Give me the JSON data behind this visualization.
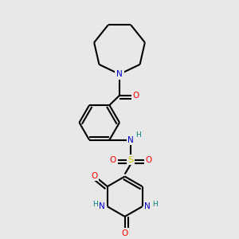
{
  "bg_color": "#e8e8e8",
  "atom_colors": {
    "N": "#0000cc",
    "O": "#ff0000",
    "S": "#cccc00",
    "C": "#000000",
    "H": "#008080"
  },
  "bond_color": "#000000",
  "bond_width": 1.5
}
